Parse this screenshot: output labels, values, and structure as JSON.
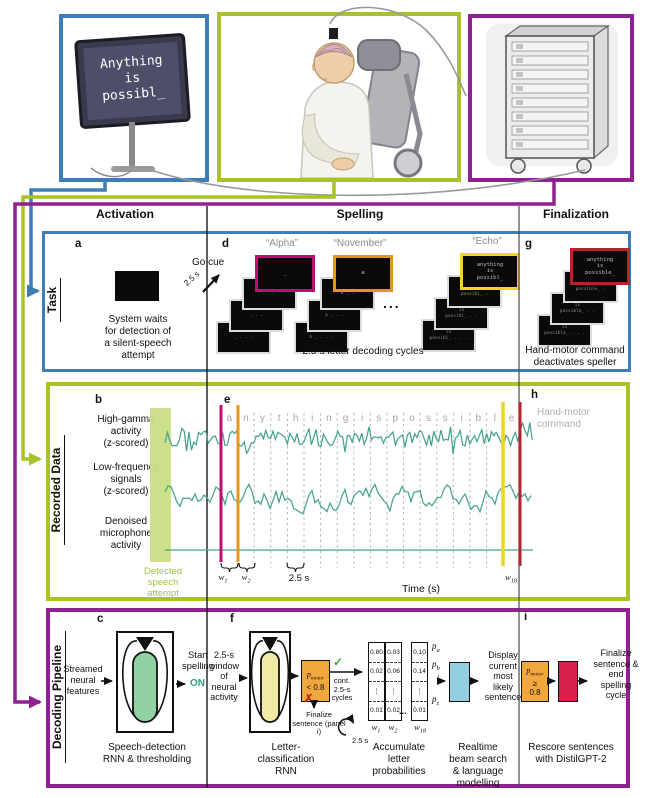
{
  "colors": {
    "task_blue": "#3e7db5",
    "data_green": "#a6c427",
    "pipeline_purple": "#8f2191",
    "cue_magenta": "#bf0d72",
    "cue_orange": "#e2951f",
    "cue_yellow": "#f2d42a",
    "cue_red": "#b5232b",
    "trace_teal": "#46a38e",
    "detect_band": "#c9dd85",
    "rnn_green": "#90d2a2",
    "rnn_yellow": "#f1e9a4",
    "gate_orange": "#f2a73d",
    "beam_blue": "#92cfe2",
    "rescore_red": "#d6224c",
    "on_teal": "#2ba37a"
  },
  "top": {
    "monitor": {
      "l1": "Anything",
      "l2": "is",
      "l3": "possibl_"
    }
  },
  "columns": {
    "c1": "Activation",
    "c2": "Spelling",
    "c3": "Finalization"
  },
  "task": {
    "label": "Task",
    "a": {
      "id": "a",
      "caption": "System waits\nfor detection of\na silent-speech\nattempt"
    },
    "d": {
      "id": "d",
      "go_cue": "Go cue",
      "arrow": "2.5 s",
      "ellipsis": "...",
      "cue1": "“Alpha”",
      "cue2": "“November”",
      "cue3": "“Echo”",
      "alpha": {
        "top": "_",
        "s1": "_ .",
        "s2": "_ . .",
        "s3": "_ . . ."
      },
      "november": {
        "top": "a",
        "s1": "a _ .",
        "s2": "a _ . .",
        "s3": "a _ . . ."
      },
      "echo": {
        "top": "anything\nis\npossibl_",
        "s1": "is\npossibl_ .",
        "s2": "is\npossibl_ . .",
        "s3": "is\npossibl_ . . ."
      },
      "caption": "2.5-s letter decoding cycles"
    },
    "g": {
      "id": "g",
      "top": "anything\nis\npossible_",
      "s1": "is\npossible_ .",
      "s2": "is\npossible_ . .",
      "s3": "is\npossible_ . . .",
      "caption": "Hand-motor command\ndeactivates speller"
    }
  },
  "recorded": {
    "label": "Recorded Data",
    "b": "b",
    "e": "e",
    "h": "h",
    "trace1": "High-gamma\nactivity\n(z-scored)",
    "trace2": "Low-frequency\nsignals\n(z-scored)",
    "trace3": "Denoised\nmicrophone\nactivity",
    "detected": "Detected\nspeech\nattempt",
    "letters": "anythingispossible",
    "w1": {
      "base": "w",
      "sub": "1"
    },
    "w2": {
      "base": "w",
      "sub": "2"
    },
    "w18": {
      "base": "w",
      "sub": "18"
    },
    "scale": "2.5 s",
    "time_axis": "Time (s)",
    "hand_motor": "Hand-motor\ncommand"
  },
  "pipeline": {
    "label": "Decoding Pipeline",
    "c": {
      "id": "c",
      "input": "Streamed\nneural\nfeatures",
      "start": "Start\nspelling",
      "on": "ON",
      "caption": "Speech-detection\nRNN & thresholding"
    },
    "f": {
      "id": "f",
      "input": "2.5-s\nwindow\nof\nneural\nactivity",
      "p": "p",
      "psub": "motor",
      "cond": "< 0.8",
      "check": "✓",
      "check_label": "cont.\n2.5-s\ncycles",
      "cross": "✗",
      "cross_label": "Finalize\nsentence (panel i)",
      "loop": "2.5 s",
      "caption": "Letter-\nclassification\nRNN"
    },
    "acc": {
      "c1": {
        "v1": "0.80",
        "v2": "0.02",
        "d": "⋮",
        "v3": "0.01",
        "wb": "w",
        "ws": "1"
      },
      "c2": {
        "v1": "0.03",
        "v2": "0.06",
        "d": "⋮",
        "v3": "0.02",
        "wb": "w",
        "ws": "2"
      },
      "c3": {
        "v1": "0.10",
        "v2": "0.14",
        "d": "⋮",
        "v3": "0.01",
        "wb": "w",
        "ws": "18"
      },
      "ellipsis": "...",
      "pa": {
        "base": "p",
        "sub": "a"
      },
      "pb": {
        "base": "p",
        "sub": "b"
      },
      "pdots": "⋮",
      "pz": {
        "base": "p",
        "sub": "z"
      },
      "caption": "Accumulate\nletter\nprobabilities"
    },
    "beam": {
      "display": "Display\ncurrent\nmost\nlikely\nsentence",
      "caption": "Realtime\nbeam search\n& language\nmodelling"
    },
    "i": {
      "id": "i",
      "p": "p",
      "psub": "motor",
      "cond": "≥\n0.8",
      "output": "Finalize\nsentence &\nend\nspelling\ncycle",
      "caption": "Rescore sentences\nwith DistilGPT-2"
    }
  }
}
